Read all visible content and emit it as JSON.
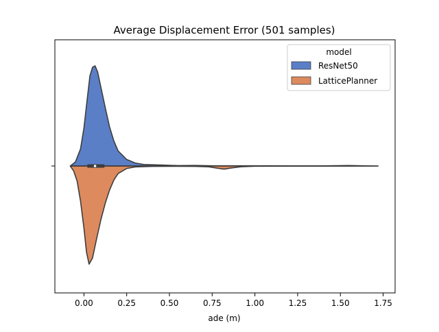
{
  "chart_data": {
    "type": "violin",
    "title": "Average Displacement Error (501 samples)",
    "xlabel": "ade (m)",
    "ylabel": "",
    "xlim": [
      -0.17,
      1.82
    ],
    "xticks": [
      0.0,
      0.25,
      0.5,
      0.75,
      1.0,
      1.25,
      1.5,
      1.75
    ],
    "xtick_labels": [
      "0.00",
      "0.25",
      "0.50",
      "0.75",
      "1.00",
      "1.25",
      "1.50",
      "1.75"
    ],
    "grid": false,
    "split": true,
    "legend": {
      "title": "model",
      "placement": "top-right",
      "entries": [
        {
          "label": "ResNet50",
          "color": "#5b7fc7"
        },
        {
          "label": "LatticePlanner",
          "color": "#dd8a5e"
        }
      ]
    },
    "series": [
      {
        "name": "ResNet50",
        "color": "#5b7fc7",
        "side": "upper",
        "density": [
          [
            -0.08,
            0.0
          ],
          [
            -0.05,
            0.04
          ],
          [
            -0.02,
            0.17
          ],
          [
            0.0,
            0.38
          ],
          [
            0.02,
            0.68
          ],
          [
            0.035,
            0.9
          ],
          [
            0.05,
            0.985
          ],
          [
            0.065,
            1.0
          ],
          [
            0.08,
            0.94
          ],
          [
            0.1,
            0.78
          ],
          [
            0.125,
            0.58
          ],
          [
            0.15,
            0.39
          ],
          [
            0.175,
            0.25
          ],
          [
            0.2,
            0.15
          ],
          [
            0.25,
            0.065
          ],
          [
            0.3,
            0.03
          ],
          [
            0.35,
            0.015
          ],
          [
            0.45,
            0.01
          ],
          [
            0.55,
            0.004
          ],
          [
            0.65,
            0.006
          ],
          [
            0.75,
            0.002
          ],
          [
            0.85,
            0.002
          ],
          [
            1.0,
            0.002
          ],
          [
            1.2,
            0.001
          ],
          [
            1.4,
            0.001
          ],
          [
            1.55,
            0.005
          ],
          [
            1.65,
            0.001
          ],
          [
            1.72,
            0.0
          ]
        ]
      },
      {
        "name": "LatticePlanner",
        "color": "#dd8a5e",
        "side": "lower",
        "density": [
          [
            -0.08,
            0.0
          ],
          [
            -0.06,
            0.05
          ],
          [
            -0.04,
            0.15
          ],
          [
            -0.02,
            0.35
          ],
          [
            0.0,
            0.62
          ],
          [
            0.015,
            0.86
          ],
          [
            0.03,
            0.98
          ],
          [
            0.05,
            0.92
          ],
          [
            0.075,
            0.72
          ],
          [
            0.1,
            0.53
          ],
          [
            0.125,
            0.37
          ],
          [
            0.15,
            0.24
          ],
          [
            0.175,
            0.14
          ],
          [
            0.2,
            0.075
          ],
          [
            0.25,
            0.025
          ],
          [
            0.3,
            0.009
          ],
          [
            0.4,
            0.004
          ],
          [
            0.55,
            0.003
          ],
          [
            0.65,
            0.004
          ],
          [
            0.73,
            0.008
          ],
          [
            0.78,
            0.022
          ],
          [
            0.82,
            0.031
          ],
          [
            0.86,
            0.02
          ],
          [
            0.92,
            0.007
          ],
          [
            1.0,
            0.002
          ],
          [
            1.3,
            0.001
          ],
          [
            1.55,
            0.001
          ],
          [
            1.72,
            0.0
          ]
        ]
      }
    ],
    "box": {
      "q1": 0.02,
      "median": 0.065,
      "q3": 0.12,
      "whisker_low": -0.08,
      "whisker_high": 0.27
    }
  }
}
